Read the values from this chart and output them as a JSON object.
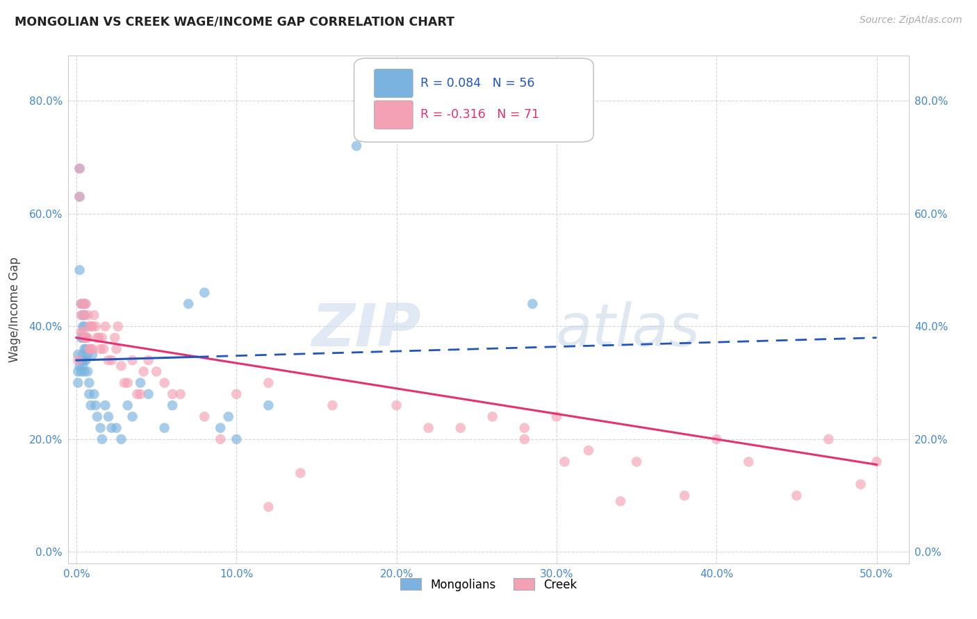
{
  "title": "MONGOLIAN VS CREEK WAGE/INCOME GAP CORRELATION CHART",
  "source": "Source: ZipAtlas.com",
  "ylabel": "Wage/Income Gap",
  "xlim": [
    -0.005,
    0.52
  ],
  "ylim": [
    -0.02,
    0.88
  ],
  "xticks": [
    0.0,
    0.1,
    0.2,
    0.3,
    0.4,
    0.5
  ],
  "yticks": [
    0.0,
    0.2,
    0.4,
    0.6,
    0.8
  ],
  "xtick_labels": [
    "0.0%",
    "10.0%",
    "20.0%",
    "30.0%",
    "40.0%",
    "50.0%"
  ],
  "ytick_labels": [
    "0.0%",
    "20.0%",
    "40.0%",
    "60.0%",
    "80.0%"
  ],
  "mongolian_R": 0.084,
  "mongolian_N": 56,
  "creek_R": -0.316,
  "creek_N": 71,
  "mongolian_color": "#7ab3e0",
  "creek_color": "#f4a0b5",
  "mongolian_line_color": "#2255bb",
  "creek_line_color": "#e83070",
  "watermark": "ZIPatlas",
  "mongolian_points_x": [
    0.001,
    0.001,
    0.001,
    0.002,
    0.002,
    0.002,
    0.002,
    0.003,
    0.003,
    0.003,
    0.003,
    0.004,
    0.004,
    0.004,
    0.004,
    0.004,
    0.005,
    0.005,
    0.005,
    0.005,
    0.005,
    0.005,
    0.005,
    0.006,
    0.006,
    0.006,
    0.007,
    0.007,
    0.008,
    0.008,
    0.009,
    0.01,
    0.011,
    0.012,
    0.013,
    0.015,
    0.016,
    0.018,
    0.02,
    0.022,
    0.025,
    0.028,
    0.032,
    0.035,
    0.04,
    0.045,
    0.055,
    0.06,
    0.07,
    0.08,
    0.09,
    0.095,
    0.1,
    0.12,
    0.175,
    0.285
  ],
  "mongolian_points_y": [
    0.35,
    0.32,
    0.3,
    0.68,
    0.63,
    0.5,
    0.33,
    0.44,
    0.38,
    0.34,
    0.32,
    0.42,
    0.4,
    0.38,
    0.35,
    0.33,
    0.44,
    0.42,
    0.4,
    0.38,
    0.36,
    0.34,
    0.32,
    0.38,
    0.36,
    0.34,
    0.35,
    0.32,
    0.3,
    0.28,
    0.26,
    0.35,
    0.28,
    0.26,
    0.24,
    0.22,
    0.2,
    0.26,
    0.24,
    0.22,
    0.22,
    0.2,
    0.26,
    0.24,
    0.3,
    0.28,
    0.22,
    0.26,
    0.44,
    0.46,
    0.22,
    0.24,
    0.2,
    0.26,
    0.72,
    0.44
  ],
  "creek_points_x": [
    0.001,
    0.002,
    0.002,
    0.003,
    0.003,
    0.003,
    0.004,
    0.004,
    0.005,
    0.005,
    0.005,
    0.006,
    0.006,
    0.007,
    0.007,
    0.008,
    0.008,
    0.009,
    0.009,
    0.01,
    0.01,
    0.011,
    0.012,
    0.013,
    0.014,
    0.015,
    0.016,
    0.017,
    0.018,
    0.02,
    0.022,
    0.024,
    0.025,
    0.026,
    0.028,
    0.03,
    0.032,
    0.035,
    0.038,
    0.04,
    0.042,
    0.045,
    0.05,
    0.055,
    0.06,
    0.065,
    0.08,
    0.09,
    0.1,
    0.12,
    0.14,
    0.16,
    0.2,
    0.22,
    0.24,
    0.26,
    0.28,
    0.3,
    0.32,
    0.35,
    0.38,
    0.4,
    0.42,
    0.45,
    0.47,
    0.49,
    0.28,
    0.305,
    0.34,
    0.5,
    0.12
  ],
  "creek_points_y": [
    0.34,
    0.68,
    0.63,
    0.44,
    0.42,
    0.39,
    0.44,
    0.39,
    0.44,
    0.42,
    0.38,
    0.44,
    0.38,
    0.42,
    0.38,
    0.4,
    0.36,
    0.4,
    0.36,
    0.4,
    0.36,
    0.42,
    0.4,
    0.38,
    0.38,
    0.36,
    0.38,
    0.36,
    0.4,
    0.34,
    0.34,
    0.38,
    0.36,
    0.4,
    0.33,
    0.3,
    0.3,
    0.34,
    0.28,
    0.28,
    0.32,
    0.34,
    0.32,
    0.3,
    0.28,
    0.28,
    0.24,
    0.2,
    0.28,
    0.3,
    0.14,
    0.26,
    0.26,
    0.22,
    0.22,
    0.24,
    0.2,
    0.24,
    0.18,
    0.16,
    0.1,
    0.2,
    0.16,
    0.1,
    0.2,
    0.12,
    0.22,
    0.16,
    0.09,
    0.16,
    0.08
  ],
  "mon_line_x0": 0.0,
  "mon_line_x1": 0.5,
  "mon_line_y0": 0.34,
  "mon_line_y1": 0.38,
  "creek_line_x0": 0.0,
  "creek_line_x1": 0.5,
  "creek_line_y0": 0.38,
  "creek_line_y1": 0.155
}
